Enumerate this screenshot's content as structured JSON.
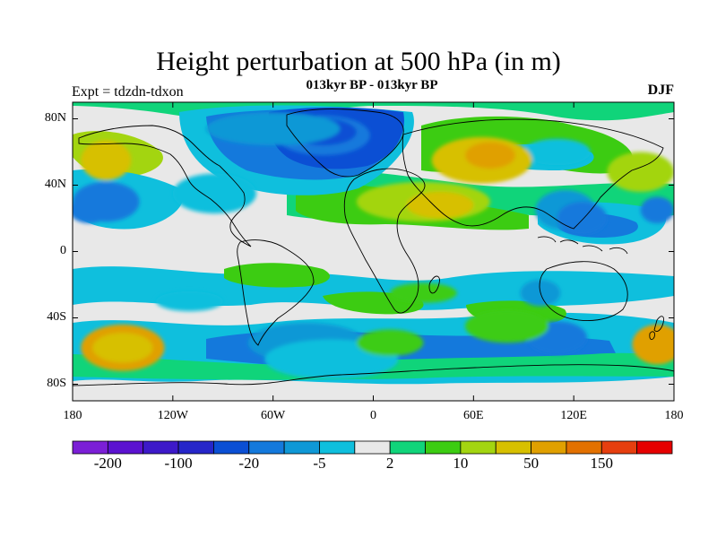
{
  "title": "Height perturbation at 500 hPa (in m)",
  "subtitle": "013kyr BP - 013kyr BP",
  "experiment": "Expt = tdzdn-tdxon",
  "season": "DJF",
  "map": {
    "lon_range": [
      180,
      540
    ],
    "lat_range": [
      -90,
      90
    ],
    "lat_ticks": [
      {
        "value": 80,
        "label": "80N"
      },
      {
        "value": 40,
        "label": "40N"
      },
      {
        "value": 0,
        "label": "0"
      },
      {
        "value": -40,
        "label": "40S"
      },
      {
        "value": -80,
        "label": "80S"
      }
    ],
    "lon_ticks": [
      {
        "value": 180,
        "label": "180"
      },
      {
        "value": 240,
        "label": "120W"
      },
      {
        "value": 300,
        "label": "60W"
      },
      {
        "value": 360,
        "label": "0"
      },
      {
        "value": 420,
        "label": "60E"
      },
      {
        "value": 480,
        "label": "120E"
      },
      {
        "value": 540,
        "label": "180"
      }
    ]
  },
  "colorbar": {
    "colors": [
      "#7b1fd6",
      "#5b12d0",
      "#3d19c9",
      "#2626c9",
      "#0b4fd4",
      "#1479dc",
      "#0f98d6",
      "#0fbfdd",
      "#e8e8e8",
      "#10d47a",
      "#3ccc12",
      "#a3d510",
      "#d7c000",
      "#e0a000",
      "#e37100",
      "#e63f0f",
      "#e60000"
    ],
    "labels": [
      {
        "index": 1,
        "text": "-200"
      },
      {
        "index": 3,
        "text": "-100"
      },
      {
        "index": 5,
        "text": "-20"
      },
      {
        "index": 7,
        "text": "-5"
      },
      {
        "index": 9,
        "text": "2"
      },
      {
        "index": 11,
        "text": "10"
      },
      {
        "index": 13,
        "text": "50"
      },
      {
        "index": 15,
        "text": "150"
      }
    ]
  },
  "field_regions": [
    {
      "lon": 330,
      "lat": 70,
      "rx": 28,
      "ry": 12,
      "level": 5
    },
    {
      "lon": 330,
      "lat": 72,
      "rx": 20,
      "ry": 8,
      "level": 4
    },
    {
      "lon": 300,
      "lat": 74,
      "rx": 40,
      "ry": 10,
      "level": 6
    },
    {
      "lon": 200,
      "lat": 30,
      "rx": 20,
      "ry": 12,
      "level": 5
    },
    {
      "lon": 190,
      "lat": 25,
      "rx": 12,
      "ry": 8,
      "level": 5
    },
    {
      "lon": 265,
      "lat": 35,
      "rx": 25,
      "ry": 12,
      "level": 7
    },
    {
      "lon": 475,
      "lat": 25,
      "rx": 18,
      "ry": 12,
      "level": 6
    },
    {
      "lon": 485,
      "lat": 20,
      "rx": 15,
      "ry": 10,
      "level": 5
    },
    {
      "lon": 470,
      "lat": 60,
      "rx": 20,
      "ry": 8,
      "level": 7
    },
    {
      "lon": 210,
      "lat": -58,
      "rx": 25,
      "ry": 14,
      "level": 13
    },
    {
      "lon": 210,
      "lat": -58,
      "rx": 18,
      "ry": 9,
      "level": 12
    },
    {
      "lon": 530,
      "lat": -56,
      "rx": 15,
      "ry": 12,
      "level": 13
    },
    {
      "lon": 250,
      "lat": -30,
      "rx": 20,
      "ry": 6,
      "level": 7
    },
    {
      "lon": 320,
      "lat": -55,
      "rx": 35,
      "ry": 12,
      "level": 6
    },
    {
      "lon": 470,
      "lat": -52,
      "rx": 18,
      "ry": 10,
      "level": 5
    },
    {
      "lon": 335,
      "lat": -65,
      "rx": 40,
      "ry": 12,
      "level": 7
    },
    {
      "lon": 425,
      "lat": 55,
      "rx": 30,
      "ry": 14,
      "level": 12
    },
    {
      "lon": 430,
      "lat": 58,
      "rx": 15,
      "ry": 8,
      "level": 13
    },
    {
      "lon": 390,
      "lat": 30,
      "rx": 40,
      "ry": 12,
      "level": 11
    },
    {
      "lon": 400,
      "lat": 28,
      "rx": 20,
      "ry": 8,
      "level": 12
    },
    {
      "lon": 200,
      "lat": 55,
      "rx": 15,
      "ry": 12,
      "level": 12
    },
    {
      "lon": 520,
      "lat": 48,
      "rx": 20,
      "ry": 12,
      "level": 11
    },
    {
      "lon": 530,
      "lat": 25,
      "rx": 10,
      "ry": 8,
      "level": 5
    },
    {
      "lon": 440,
      "lat": -45,
      "rx": 25,
      "ry": 10,
      "level": 10
    },
    {
      "lon": 390,
      "lat": -25,
      "rx": 20,
      "ry": 6,
      "level": 10
    },
    {
      "lon": 460,
      "lat": -25,
      "rx": 12,
      "ry": 8,
      "level": 6
    },
    {
      "lon": 370,
      "lat": -55,
      "rx": 20,
      "ry": 8,
      "level": 10
    }
  ]
}
